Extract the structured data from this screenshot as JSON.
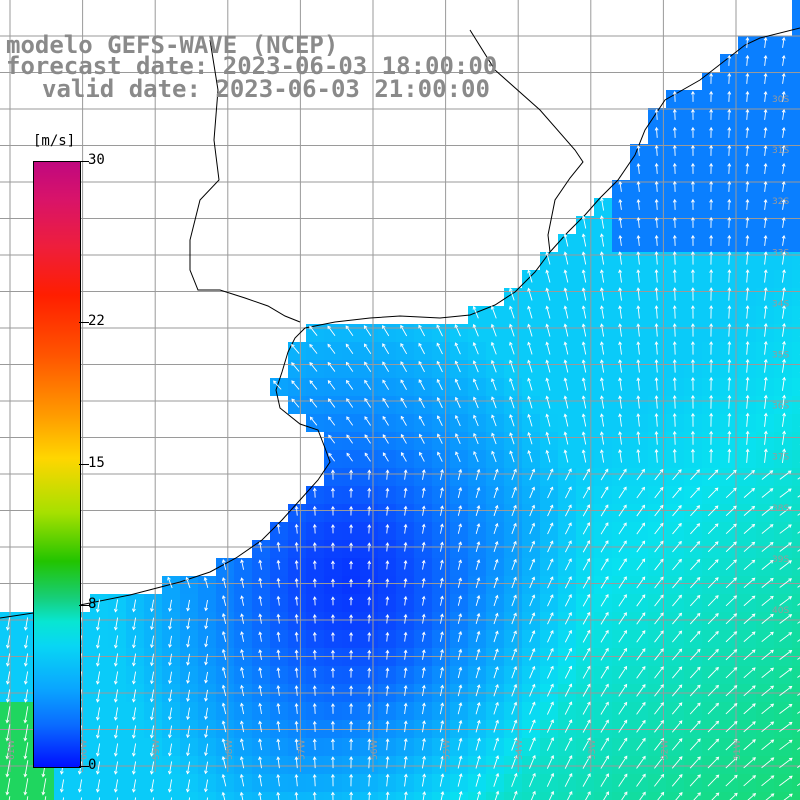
{
  "title": {
    "model": "modelo GEFS-WAVE (NCEP)",
    "forecast": "forecast date: 2023-06-03 18:00:00",
    "valid": "valid date: 2023-06-03 21:00:00"
  },
  "colorbar": {
    "unit": "[m/s]",
    "ticks": [
      {
        "label": "30",
        "value": 30
      },
      {
        "label": "22",
        "value": 22
      },
      {
        "label": "15",
        "value": 15
      },
      {
        "label": "8",
        "value": 8
      },
      {
        "label": "0",
        "value": 0
      }
    ],
    "range": [
      0,
      30
    ]
  },
  "lat_labels": [
    "30S",
    "31S",
    "32S",
    "33S",
    "34S",
    "35S",
    "36S",
    "37S",
    "38S",
    "39S",
    "40S"
  ],
  "lon_labels": [
    "61W",
    "60W",
    "59W",
    "58W",
    "57W",
    "56W",
    "55W",
    "54W",
    "53W",
    "52W",
    "51W"
  ],
  "colors": {
    "land": "#ffffff",
    "grid": "#9a9a9a",
    "coast": "#000000",
    "vectors": "#ffffff",
    "title": "#8a8a8a"
  }
}
